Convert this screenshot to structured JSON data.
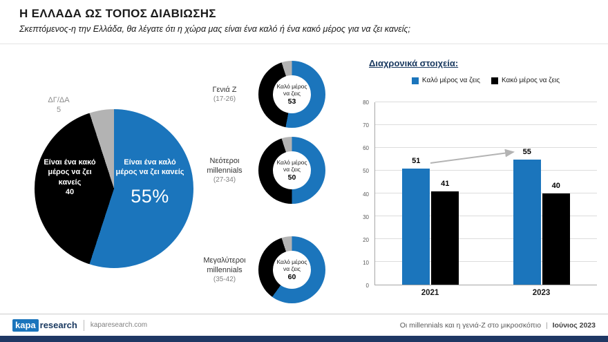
{
  "header": {
    "title": "Η ΕΛΛΑΔΑ ΩΣ ΤΟΠΟΣ ΔΙΑΒΙΩΣΗΣ",
    "subtitle": "Σκεπτόμενος-η την Ελλάδα, θα λέγατε ότι η χώρα μας είναι ένα καλό ή ένα κακό μέρος για να ζει κανείς;"
  },
  "colors": {
    "good_blue": "#1b75bc",
    "bad_black": "#000000",
    "dk_gray": "#b3b3b3",
    "navy": "#1f3864"
  },
  "chart_data": [
    {
      "type": "pie",
      "slices": [
        {
          "label": "Είναι ένα καλό μέρος να ζει κανείς",
          "value": 55,
          "display": "55%",
          "color": "#1b75bc"
        },
        {
          "label": "Είναι ένα κακό μέρος να ζει κανείς",
          "value": 40,
          "display": "40",
          "color": "#000000"
        },
        {
          "label": "ΔΓ/ΔΑ",
          "value": 5,
          "display": "5",
          "color": "#b3b3b3"
        }
      ]
    },
    {
      "type": "donut-series",
      "center_label": "Καλό μέρος να ζεις",
      "palette": {
        "good": "#1b75bc",
        "bad": "#000000",
        "dk": "#b3b3b3"
      },
      "donuts": [
        {
          "group": "Γενιά Z",
          "age": "(17-26)",
          "good": 53,
          "bad": 42,
          "dk": 5
        },
        {
          "group": "Νεότεροι millennials",
          "age": "(27-34)",
          "good": 50,
          "bad": 45,
          "dk": 5
        },
        {
          "group": "Μεγαλύτεροι millennials",
          "age": "(35-42)",
          "good": 60,
          "bad": 35,
          "dk": 5
        }
      ]
    },
    {
      "type": "bar",
      "title": "Διαχρονικά στοιχεία:",
      "categories": [
        "2021",
        "2023"
      ],
      "series": [
        {
          "name": "Καλό μέρος να ζεις",
          "color": "#1b75bc",
          "values": [
            51,
            55
          ]
        },
        {
          "name": "Κακό μέρος να ζεις",
          "color": "#000000",
          "values": [
            41,
            40
          ]
        }
      ],
      "ylim": [
        0,
        80
      ],
      "ytick_step": 10,
      "grid": true,
      "legend_position": "top"
    }
  ],
  "footer": {
    "logo_primary": "kapa",
    "logo_secondary": "research",
    "website": "kaparesearch.com",
    "report_title": "Οι millennials και η γενιά-Z στο μικροσκόπιο",
    "separator": "|",
    "report_date": "Ιούνιος 2023"
  }
}
